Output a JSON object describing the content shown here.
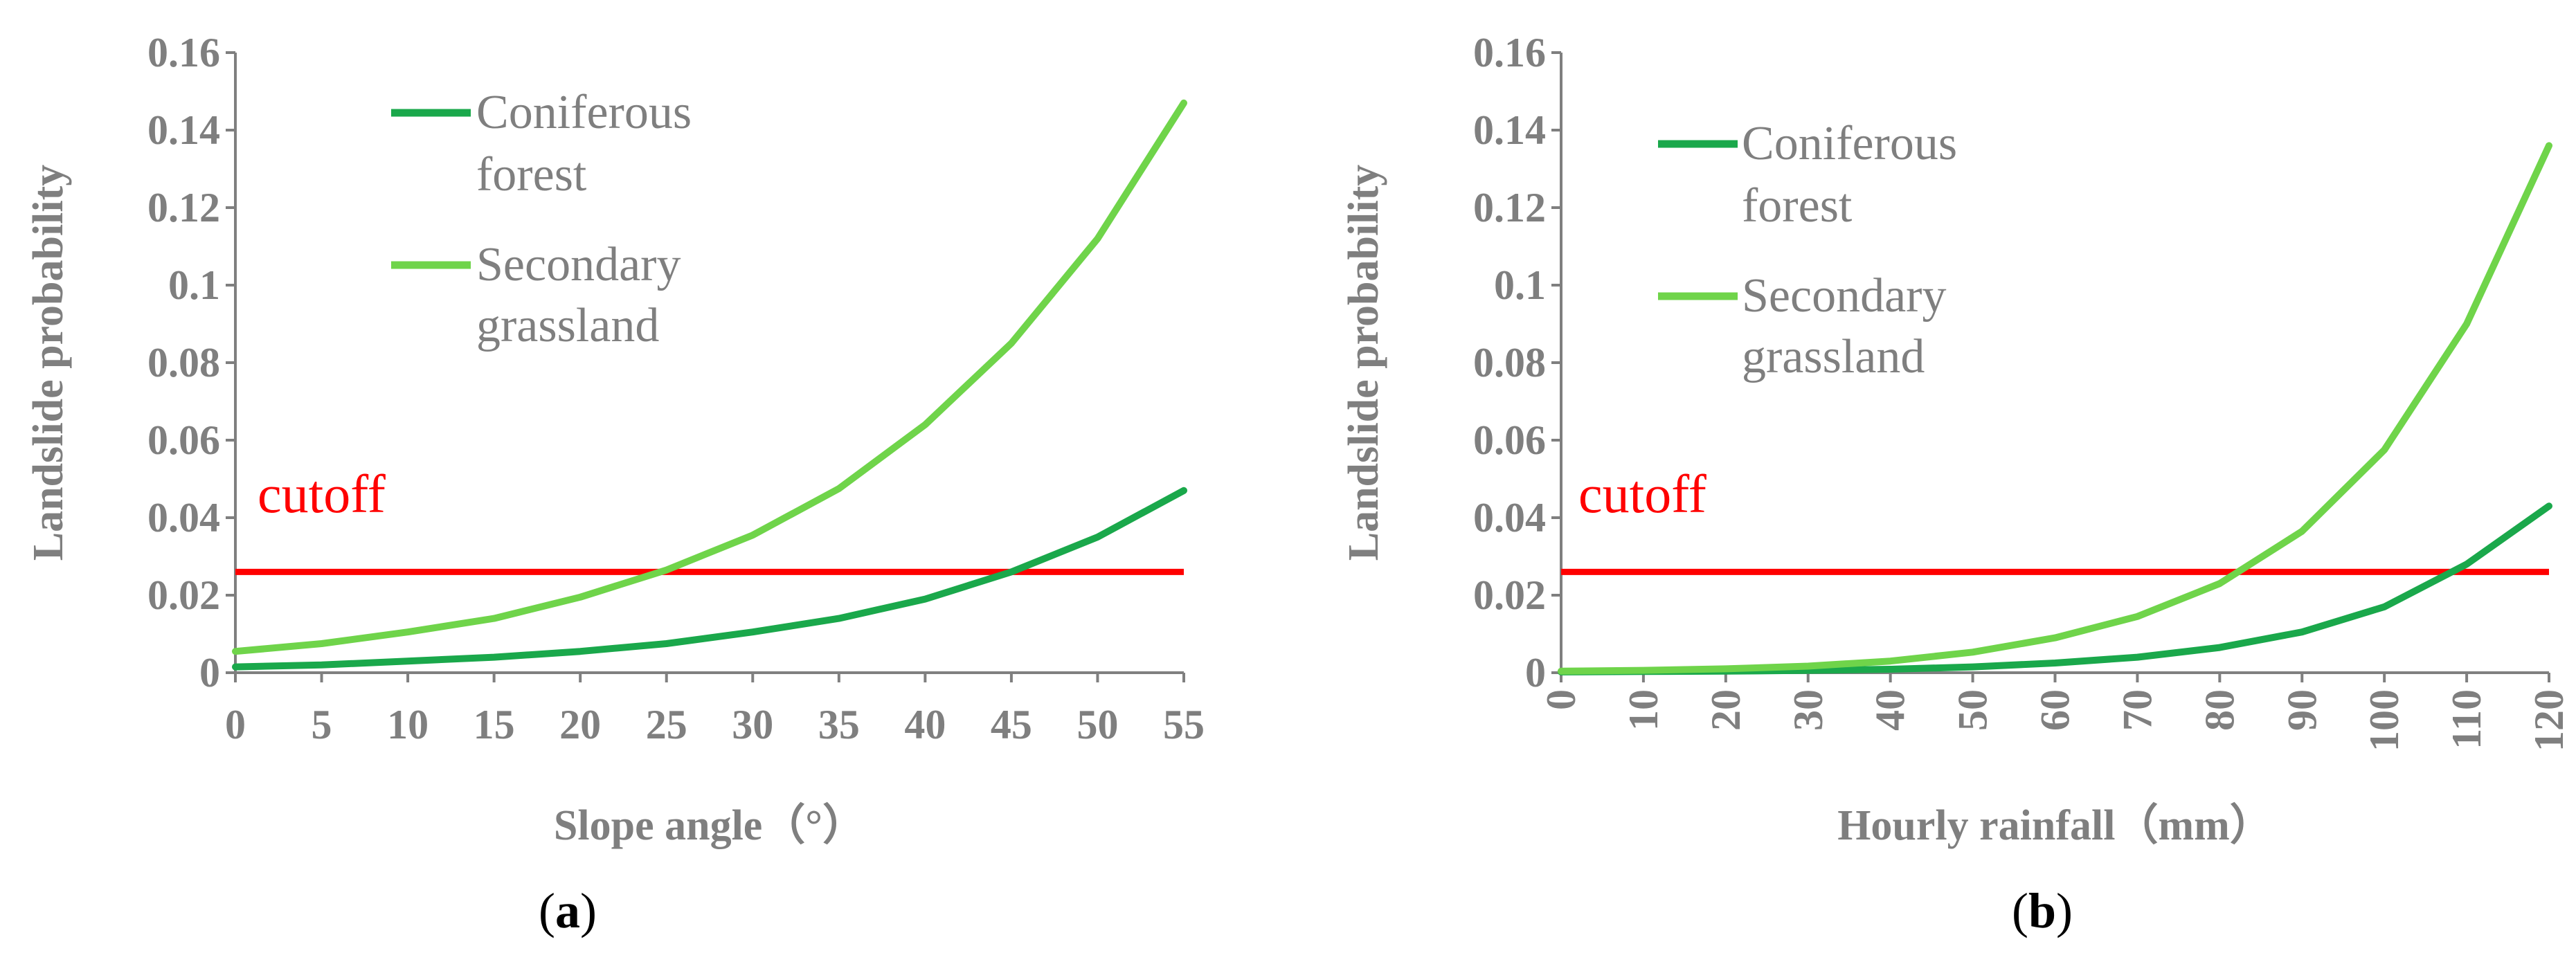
{
  "chart_data": [
    {
      "type": "line",
      "panel_label": "(a)",
      "panel_letter": "a",
      "xlabel": "Slope angle（°）",
      "ylabel": "Landslide probability",
      "x": [
        0,
        5,
        10,
        15,
        20,
        25,
        30,
        35,
        40,
        45,
        50,
        55
      ],
      "xlim": [
        0,
        55
      ],
      "ylim": [
        0,
        0.16
      ],
      "yticks": [
        "0",
        "0.02",
        "0.04",
        "0.06",
        "0.08",
        "0.1",
        "0.12",
        "0.14",
        "0.16"
      ],
      "xticks": [
        "0",
        "5",
        "10",
        "15",
        "20",
        "25",
        "30",
        "35",
        "40",
        "45",
        "50",
        "55"
      ],
      "xtick_rotation": 0,
      "series": [
        {
          "name": "Coniferous forest",
          "legend_lines": [
            "Coniferous",
            "forest"
          ],
          "color": "#1aa84b",
          "values": [
            0.0015,
            0.002,
            0.003,
            0.004,
            0.0055,
            0.0075,
            0.0105,
            0.014,
            0.019,
            0.026,
            0.035,
            0.047
          ]
        },
        {
          "name": "Secondary grassland",
          "legend_lines": [
            "Secondary",
            "grassland"
          ],
          "color": "#6fd44a",
          "values": [
            0.0055,
            0.0075,
            0.0105,
            0.014,
            0.0195,
            0.0265,
            0.0355,
            0.0475,
            0.064,
            0.085,
            0.112,
            0.147
          ]
        }
      ],
      "cutoff": {
        "label": "cutoff",
        "value": 0.026,
        "color": "#ff0000"
      },
      "legend_position": "top-left"
    },
    {
      "type": "line",
      "panel_label": "(b)",
      "panel_letter": "b",
      "xlabel": "Hourly rainfall（mm）",
      "ylabel": "Landslide probability",
      "x": [
        0,
        10,
        20,
        30,
        40,
        50,
        60,
        70,
        80,
        90,
        100,
        110,
        120
      ],
      "xlim": [
        0,
        120
      ],
      "ylim": [
        0,
        0.16
      ],
      "yticks": [
        "0",
        "0.02",
        "0.04",
        "0.06",
        "0.08",
        "0.1",
        "0.12",
        "0.14",
        "0.16"
      ],
      "xticks": [
        "0",
        "10",
        "20",
        "30",
        "40",
        "50",
        "60",
        "70",
        "80",
        "90",
        "100",
        "110",
        "120"
      ],
      "xtick_rotation": -90,
      "series": [
        {
          "name": "Coniferous forest",
          "legend_lines": [
            "Coniferous",
            "forest"
          ],
          "color": "#1aa84b",
          "values": [
            0.0002,
            0.0003,
            0.0004,
            0.0006,
            0.0009,
            0.0015,
            0.0025,
            0.004,
            0.0065,
            0.0105,
            0.017,
            0.028,
            0.043
          ]
        },
        {
          "name": "Secondary grassland",
          "legend_lines": [
            "Secondary",
            "grassland"
          ],
          "color": "#6fd44a",
          "values": [
            0.0004,
            0.0006,
            0.001,
            0.0017,
            0.003,
            0.0053,
            0.009,
            0.0145,
            0.023,
            0.0365,
            0.0575,
            0.09,
            0.136
          ]
        }
      ],
      "cutoff": {
        "label": "cutoff",
        "value": 0.026,
        "color": "#ff0000"
      },
      "legend_position": "top-left"
    }
  ]
}
